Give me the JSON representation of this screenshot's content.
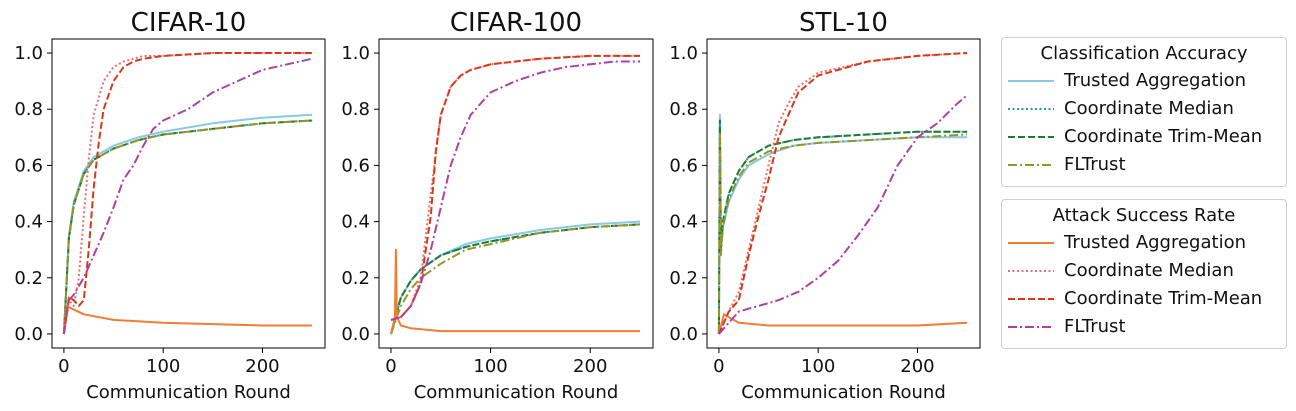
{
  "chart_data": [
    {
      "type": "line",
      "title": "CIFAR-10",
      "xlabel": "Communication Round",
      "ylabel": "",
      "xlim": [
        -12,
        263
      ],
      "ylim": [
        -0.05,
        1.05
      ],
      "xticks": [
        "0",
        "100",
        "200"
      ],
      "yticks": [
        "0.0",
        "0.2",
        "0.4",
        "0.6",
        "0.8",
        "1.0"
      ],
      "series": [
        {
          "name": "Trusted Aggregation",
          "group": "Classification Accuracy",
          "color": "#89c8e6",
          "dash": "solid",
          "x": [
            0,
            5,
            10,
            20,
            30,
            50,
            75,
            100,
            150,
            200,
            250
          ],
          "y": [
            0.0,
            0.35,
            0.47,
            0.58,
            0.63,
            0.67,
            0.7,
            0.72,
            0.75,
            0.77,
            0.78
          ]
        },
        {
          "name": "Coordinate Median",
          "group": "Classification Accuracy",
          "color": "#2a9aa8",
          "dash": "dotted",
          "x": [
            0,
            5,
            10,
            20,
            30,
            50,
            75,
            100,
            150,
            200,
            250
          ],
          "y": [
            0.0,
            0.34,
            0.46,
            0.57,
            0.62,
            0.66,
            0.69,
            0.71,
            0.73,
            0.75,
            0.76
          ]
        },
        {
          "name": "Coordinate Trim-Mean",
          "group": "Classification Accuracy",
          "color": "#1e7a2e",
          "dash": "dashed",
          "x": [
            0,
            5,
            10,
            20,
            30,
            50,
            75,
            100,
            150,
            200,
            250
          ],
          "y": [
            0.0,
            0.34,
            0.46,
            0.57,
            0.62,
            0.66,
            0.69,
            0.71,
            0.73,
            0.75,
            0.76
          ]
        },
        {
          "name": "FLTrust",
          "group": "Classification Accuracy",
          "color": "#94962c",
          "dash": "dashdot",
          "x": [
            0,
            5,
            10,
            20,
            30,
            50,
            75,
            100,
            150,
            200,
            250
          ],
          "y": [
            0.0,
            0.34,
            0.46,
            0.57,
            0.62,
            0.66,
            0.69,
            0.71,
            0.73,
            0.75,
            0.76
          ]
        },
        {
          "name": "Trusted Aggregation",
          "group": "Attack Success Rate",
          "color": "#ef7d35",
          "dash": "solid",
          "x": [
            0,
            3,
            8,
            20,
            50,
            100,
            150,
            200,
            250
          ],
          "y": [
            0.0,
            0.1,
            0.09,
            0.07,
            0.05,
            0.04,
            0.035,
            0.03,
            0.03
          ]
        },
        {
          "name": "Coordinate Median",
          "group": "Attack Success Rate",
          "color": "#e86f6f",
          "dash": "dotted",
          "x": [
            0,
            5,
            10,
            15,
            20,
            25,
            30,
            40,
            50,
            60,
            70,
            80,
            100,
            150,
            200,
            250
          ],
          "y": [
            0.0,
            0.12,
            0.1,
            0.2,
            0.42,
            0.62,
            0.78,
            0.9,
            0.95,
            0.97,
            0.98,
            0.99,
            0.99,
            1.0,
            1.0,
            1.0
          ]
        },
        {
          "name": "Coordinate Trim-Mean",
          "group": "Attack Success Rate",
          "color": "#d83818",
          "dash": "dashed",
          "x": [
            0,
            5,
            10,
            15,
            20,
            25,
            30,
            35,
            40,
            50,
            60,
            70,
            80,
            100,
            150,
            200,
            250
          ],
          "y": [
            0.0,
            0.13,
            0.12,
            0.1,
            0.12,
            0.3,
            0.52,
            0.68,
            0.8,
            0.9,
            0.95,
            0.97,
            0.98,
            0.99,
            1.0,
            1.0,
            1.0
          ]
        },
        {
          "name": "FLTrust",
          "group": "Attack Success Rate",
          "color": "#ad40a3",
          "dash": "dashdot",
          "x": [
            0,
            5,
            10,
            20,
            30,
            40,
            50,
            60,
            70,
            80,
            90,
            100,
            125,
            150,
            175,
            200,
            225,
            250
          ],
          "y": [
            0.0,
            0.12,
            0.14,
            0.2,
            0.28,
            0.36,
            0.45,
            0.55,
            0.6,
            0.67,
            0.73,
            0.76,
            0.8,
            0.86,
            0.9,
            0.94,
            0.96,
            0.98
          ]
        }
      ]
    },
    {
      "type": "line",
      "title": "CIFAR-100",
      "xlabel": "Communication Round",
      "ylabel": "",
      "xlim": [
        -12,
        263
      ],
      "ylim": [
        -0.05,
        1.05
      ],
      "xticks": [
        "0",
        "100",
        "200"
      ],
      "yticks": [
        "0.0",
        "0.2",
        "0.4",
        "0.6",
        "0.8",
        "1.0"
      ],
      "series": [
        {
          "name": "Trusted Aggregation",
          "group": "Classification Accuracy",
          "color": "#89c8e6",
          "dash": "solid",
          "x": [
            0,
            10,
            20,
            30,
            50,
            75,
            100,
            150,
            200,
            250
          ],
          "y": [
            0.0,
            0.13,
            0.19,
            0.23,
            0.28,
            0.32,
            0.34,
            0.37,
            0.39,
            0.4
          ]
        },
        {
          "name": "Coordinate Median",
          "group": "Classification Accuracy",
          "color": "#2a9aa8",
          "dash": "dotted",
          "x": [
            0,
            10,
            20,
            30,
            50,
            75,
            100,
            150,
            200,
            250
          ],
          "y": [
            0.0,
            0.13,
            0.19,
            0.23,
            0.28,
            0.31,
            0.33,
            0.36,
            0.38,
            0.39
          ]
        },
        {
          "name": "Coordinate Trim-Mean",
          "group": "Classification Accuracy",
          "color": "#1e7a2e",
          "dash": "dashed",
          "x": [
            0,
            10,
            20,
            30,
            50,
            75,
            100,
            150,
            200,
            250
          ],
          "y": [
            0.0,
            0.13,
            0.19,
            0.23,
            0.28,
            0.31,
            0.33,
            0.36,
            0.38,
            0.39
          ]
        },
        {
          "name": "FLTrust",
          "group": "Classification Accuracy",
          "color": "#94962c",
          "dash": "dashdot",
          "x": [
            0,
            10,
            20,
            30,
            50,
            75,
            100,
            150,
            200,
            250
          ],
          "y": [
            0.0,
            0.1,
            0.16,
            0.2,
            0.25,
            0.3,
            0.32,
            0.36,
            0.38,
            0.39
          ]
        },
        {
          "name": "Trusted Aggregation",
          "group": "Attack Success Rate",
          "color": "#ef7d35",
          "dash": "solid",
          "x": [
            0,
            4,
            5,
            6,
            10,
            20,
            50,
            100,
            150,
            200,
            250
          ],
          "y": [
            0.0,
            0.06,
            0.3,
            0.06,
            0.03,
            0.02,
            0.01,
            0.01,
            0.01,
            0.01,
            0.01
          ]
        },
        {
          "name": "Coordinate Median",
          "group": "Attack Success Rate",
          "color": "#e86f6f",
          "dash": "dotted",
          "x": [
            0,
            10,
            20,
            30,
            40,
            50,
            60,
            70,
            80,
            100,
            150,
            200,
            250
          ],
          "y": [
            0.05,
            0.06,
            0.1,
            0.2,
            0.5,
            0.78,
            0.88,
            0.92,
            0.94,
            0.96,
            0.98,
            0.99,
            0.99
          ]
        },
        {
          "name": "Coordinate Trim-Mean",
          "group": "Attack Success Rate",
          "color": "#d83818",
          "dash": "dashed",
          "x": [
            0,
            10,
            20,
            30,
            40,
            45,
            50,
            60,
            70,
            80,
            100,
            150,
            200,
            250
          ],
          "y": [
            0.05,
            0.06,
            0.1,
            0.18,
            0.42,
            0.65,
            0.78,
            0.88,
            0.92,
            0.94,
            0.96,
            0.98,
            0.99,
            0.99
          ]
        },
        {
          "name": "FLTrust",
          "group": "Attack Success Rate",
          "color": "#ad40a3",
          "dash": "dashdot",
          "x": [
            0,
            10,
            20,
            30,
            40,
            50,
            60,
            70,
            80,
            90,
            100,
            125,
            150,
            175,
            200,
            225,
            250
          ],
          "y": [
            0.05,
            0.06,
            0.1,
            0.18,
            0.3,
            0.45,
            0.6,
            0.7,
            0.78,
            0.82,
            0.86,
            0.9,
            0.93,
            0.95,
            0.96,
            0.97,
            0.97
          ]
        }
      ]
    },
    {
      "type": "line",
      "title": "STL-10",
      "xlabel": "Communication Round",
      "ylabel": "",
      "xlim": [
        -12,
        263
      ],
      "ylim": [
        -0.05,
        1.05
      ],
      "xticks": [
        "0",
        "100",
        "200"
      ],
      "yticks": [
        "0.0",
        "0.2",
        "0.4",
        "0.6",
        "0.8",
        "1.0"
      ],
      "series": [
        {
          "name": "Trusted Aggregation",
          "group": "Classification Accuracy",
          "color": "#89c8e6",
          "dash": "solid",
          "x": [
            0,
            1,
            2,
            4,
            10,
            20,
            30,
            50,
            75,
            100,
            150,
            200,
            250
          ],
          "y": [
            0.0,
            0.78,
            0.3,
            0.38,
            0.47,
            0.55,
            0.6,
            0.64,
            0.67,
            0.68,
            0.69,
            0.7,
            0.7
          ]
        },
        {
          "name": "Coordinate Median",
          "group": "Classification Accuracy",
          "color": "#2a9aa8",
          "dash": "dotted",
          "x": [
            0,
            1,
            2,
            4,
            10,
            20,
            30,
            50,
            75,
            100,
            150,
            200,
            250
          ],
          "y": [
            0.0,
            0.75,
            0.3,
            0.4,
            0.5,
            0.58,
            0.63,
            0.67,
            0.69,
            0.7,
            0.71,
            0.72,
            0.72
          ]
        },
        {
          "name": "Coordinate Trim-Mean",
          "group": "Classification Accuracy",
          "color": "#1e7a2e",
          "dash": "dashed",
          "x": [
            0,
            1,
            2,
            4,
            10,
            20,
            30,
            50,
            75,
            100,
            150,
            200,
            250
          ],
          "y": [
            0.0,
            0.76,
            0.3,
            0.4,
            0.5,
            0.58,
            0.63,
            0.67,
            0.69,
            0.7,
            0.71,
            0.72,
            0.72
          ]
        },
        {
          "name": "FLTrust",
          "group": "Classification Accuracy",
          "color": "#94962c",
          "dash": "dashdot",
          "x": [
            0,
            1,
            2,
            4,
            10,
            20,
            30,
            50,
            75,
            100,
            150,
            200,
            250
          ],
          "y": [
            0.0,
            0.72,
            0.28,
            0.38,
            0.48,
            0.56,
            0.61,
            0.65,
            0.67,
            0.68,
            0.69,
            0.7,
            0.71
          ]
        },
        {
          "name": "Trusted Aggregation",
          "group": "Attack Success Rate",
          "color": "#ef7d35",
          "dash": "solid",
          "x": [
            0,
            5,
            10,
            20,
            50,
            100,
            150,
            200,
            250
          ],
          "y": [
            0.0,
            0.07,
            0.06,
            0.04,
            0.03,
            0.03,
            0.03,
            0.03,
            0.04
          ]
        },
        {
          "name": "Coordinate Median",
          "group": "Attack Success Rate",
          "color": "#e86f6f",
          "dash": "dotted",
          "x": [
            0,
            10,
            20,
            30,
            40,
            50,
            60,
            70,
            80,
            100,
            150,
            200,
            250
          ],
          "y": [
            0.0,
            0.08,
            0.15,
            0.3,
            0.45,
            0.6,
            0.75,
            0.82,
            0.88,
            0.93,
            0.97,
            0.99,
            1.0
          ]
        },
        {
          "name": "Coordinate Trim-Mean",
          "group": "Attack Success Rate",
          "color": "#d83818",
          "dash": "dashed",
          "x": [
            0,
            10,
            20,
            30,
            40,
            50,
            60,
            70,
            80,
            100,
            150,
            200,
            250
          ],
          "y": [
            0.0,
            0.08,
            0.12,
            0.28,
            0.42,
            0.55,
            0.7,
            0.78,
            0.86,
            0.92,
            0.97,
            0.99,
            1.0
          ]
        },
        {
          "name": "FLTrust",
          "group": "Attack Success Rate",
          "color": "#ad40a3",
          "dash": "dashdot",
          "x": [
            0,
            20,
            40,
            60,
            80,
            100,
            120,
            140,
            160,
            180,
            200,
            220,
            240,
            250
          ],
          "y": [
            0.0,
            0.08,
            0.1,
            0.12,
            0.15,
            0.2,
            0.26,
            0.35,
            0.45,
            0.6,
            0.7,
            0.75,
            0.82,
            0.85
          ]
        }
      ]
    }
  ],
  "legends": [
    {
      "title": "Classification Accuracy",
      "items": [
        {
          "label": "Trusted Aggregation",
          "color": "#89c8e6",
          "dash": "solid"
        },
        {
          "label": "Coordinate Median",
          "color": "#2a9aa8",
          "dash": "dotted"
        },
        {
          "label": "Coordinate Trim-Mean",
          "color": "#1e7a2e",
          "dash": "dashed"
        },
        {
          "label": "FLTrust",
          "color": "#94962c",
          "dash": "dashdot"
        }
      ]
    },
    {
      "title": "Attack Success Rate",
      "items": [
        {
          "label": "Trusted Aggregation",
          "color": "#ef7d35",
          "dash": "solid"
        },
        {
          "label": "Coordinate Median",
          "color": "#e86f6f",
          "dash": "dotted"
        },
        {
          "label": "Coordinate Trim-Mean",
          "color": "#d83818",
          "dash": "dashed"
        },
        {
          "label": "FLTrust",
          "color": "#ad40a3",
          "dash": "dashdot"
        }
      ]
    }
  ]
}
